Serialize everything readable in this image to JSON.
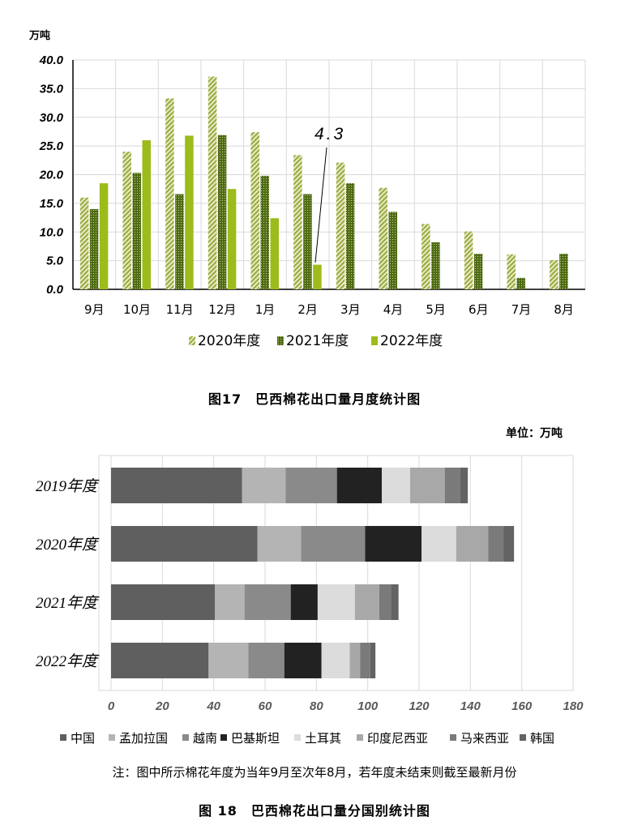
{
  "figure17": {
    "unit_label": "万吨",
    "caption": "图17　巴西棉花出口量月度统计图",
    "annotation": "4.3"
  },
  "figure18": {
    "unit_label": "单位：万吨",
    "note": "注：图中所示棉花年度为当年9月至次年8月，若年度未结束则截至最新月份",
    "caption": "图 18　巴西棉花出口量分国别统计图"
  },
  "chart_data": [
    {
      "type": "bar",
      "categories": [
        "9月",
        "10月",
        "11月",
        "12月",
        "1月",
        "2月",
        "3月",
        "4月",
        "5月",
        "6月",
        "7月",
        "8月"
      ],
      "series": [
        {
          "name": "2020年度",
          "values": [
            16,
            24,
            33.3,
            37.1,
            27.4,
            23.4,
            22.1,
            17.7,
            11.4,
            10.1,
            6.1,
            5.1
          ]
        },
        {
          "name": "2021年度",
          "values": [
            14,
            20.3,
            16.6,
            26.9,
            19.8,
            16.6,
            18.5,
            13.5,
            8.2,
            6.2,
            2,
            6.2
          ]
        },
        {
          "name": "2022年度",
          "values": [
            18.5,
            26,
            26.8,
            17.5,
            12.4,
            4.3,
            null,
            null,
            null,
            null,
            null,
            null
          ]
        }
      ],
      "yticks": [
        "0.0",
        "5.0",
        "10.0",
        "15.0",
        "20.0",
        "25.0",
        "30.0",
        "35.0",
        "40.0"
      ],
      "ylim": [
        0,
        40
      ],
      "grid": true,
      "legend": "bottom",
      "colors": {
        "2020年度": "#b5c266",
        "2021年度": "#5b7a1e",
        "2022年度": "#9dbb1a"
      }
    },
    {
      "type": "bar",
      "orientation": "horizontal",
      "stacked": true,
      "categories": [
        "2019年度",
        "2020年度",
        "2021年度",
        "2022年度"
      ],
      "series": [
        {
          "name": "中国",
          "values": [
            51,
            57,
            40.5,
            38
          ]
        },
        {
          "name": "孟加拉国",
          "values": [
            17,
            17,
            11.5,
            15.5
          ]
        },
        {
          "name": "越南",
          "values": [
            20,
            25,
            18,
            14
          ]
        },
        {
          "name": "巴基斯坦",
          "values": [
            17.5,
            22,
            10.5,
            14.5
          ]
        },
        {
          "name": "土耳其",
          "values": [
            11,
            13.5,
            14.5,
            11
          ]
        },
        {
          "name": "印度尼西亚",
          "values": [
            13.5,
            12.5,
            9.5,
            4
          ]
        },
        {
          "name": "马来西亚",
          "values": [
            6,
            6,
            4.5,
            4
          ]
        },
        {
          "name": "韩国",
          "values": [
            3,
            4,
            3,
            2
          ]
        }
      ],
      "xticks": [
        "0",
        "20",
        "40",
        "60",
        "80",
        "100",
        "120",
        "140",
        "160",
        "180"
      ],
      "xlim": [
        0,
        180
      ],
      "grid": true,
      "legend": "bottom",
      "colors": {
        "中国": "#5f5f5f",
        "孟加拉国": "#b4b4b4",
        "越南": "#8a8a8a",
        "巴基斯坦": "#222222",
        "土耳其": "#dcdcdc",
        "印度尼西亚": "#a8a8a8",
        "马来西亚": "#7a7a7a",
        "韩国": "#636363"
      }
    }
  ]
}
